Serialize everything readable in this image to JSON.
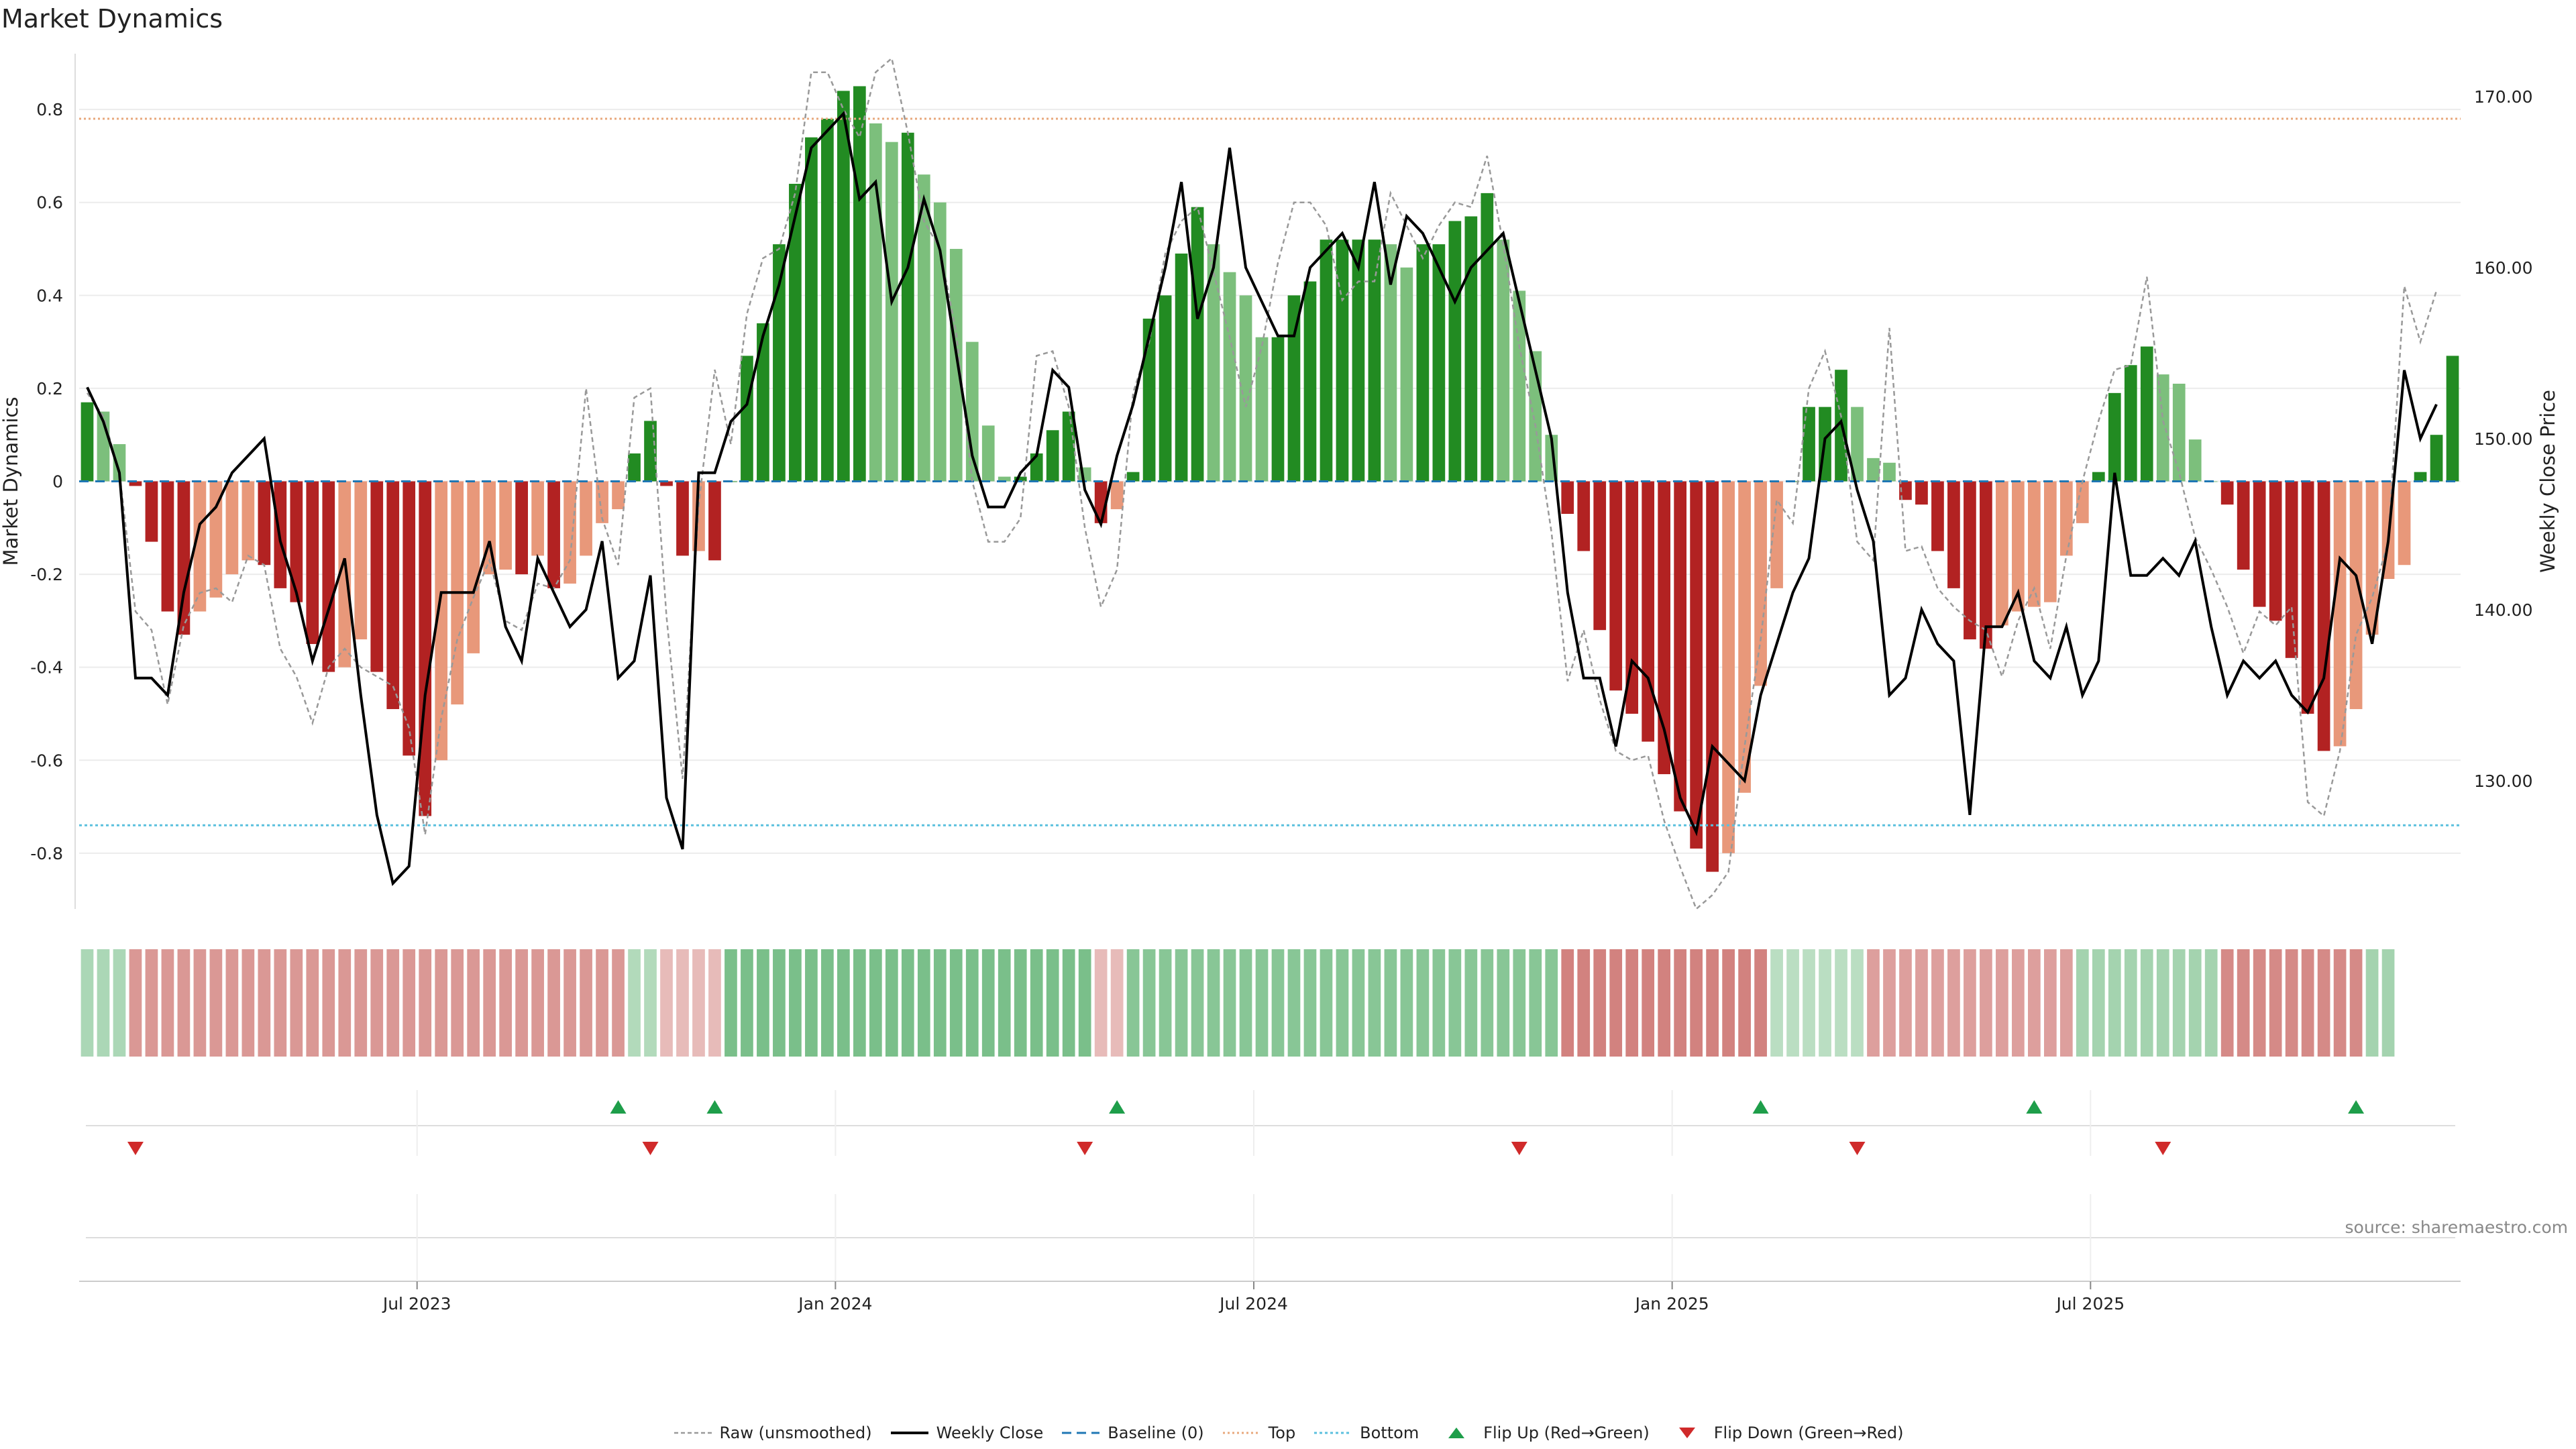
{
  "title": "Market Dynamics",
  "source": "source: sharemaestro.com",
  "colors": {
    "strong_green": "#228b22",
    "light_green": "#7cbf7c",
    "strong_red": "#b22222",
    "light_red": "#e8987a",
    "raw": "#999999",
    "close": "#000000",
    "baseline": "#1f77b4",
    "top": "#e8a87c",
    "bottom": "#5bc0de"
  },
  "legend": [
    {
      "key": "raw",
      "label": "Raw (unsmoothed)"
    },
    {
      "key": "close",
      "label": "Weekly Close"
    },
    {
      "key": "baseline",
      "label": "Baseline (0)"
    },
    {
      "key": "top",
      "label": "Top"
    },
    {
      "key": "bottom",
      "label": "Bottom"
    },
    {
      "key": "flip_up",
      "label": "Flip Up (Red→Green)"
    },
    {
      "key": "flip_down",
      "label": "Flip Down (Green→Red)"
    }
  ],
  "chart_data": {
    "type": "bar",
    "ylabel_left": "Market Dynamics",
    "ylabel_right": "Weekly Close Price",
    "ylim_left": [
      -0.92,
      0.92
    ],
    "ylim_right": [
      122.5,
      172.5
    ],
    "yticks_left": [
      0.8,
      0.6,
      0.4,
      0.2,
      0,
      -0.2,
      -0.4,
      -0.6,
      -0.8
    ],
    "yticks_right": [
      "170.00",
      "160.00",
      "150.00",
      "140.00",
      "130.00"
    ],
    "ytick_right_values": [
      170,
      160,
      150,
      140,
      130
    ],
    "top_level": 0.78,
    "bottom_level": -0.74,
    "xticks": [
      {
        "label": "Jul 2023",
        "index": 20.5
      },
      {
        "label": "Jan 2024",
        "index": 46.5
      },
      {
        "label": "Jul 2024",
        "index": 72.5
      },
      {
        "label": "Jan 2025",
        "index": 98.5
      },
      {
        "label": "Jul 2025",
        "index": 124.5
      }
    ],
    "series": [
      {
        "name": "Market Dynamics",
        "values": [
          0.17,
          0.15,
          0.08,
          -0.01,
          -0.13,
          -0.28,
          -0.33,
          -0.28,
          -0.25,
          -0.2,
          -0.17,
          -0.18,
          -0.23,
          -0.26,
          -0.35,
          -0.41,
          -0.4,
          -0.34,
          -0.41,
          -0.49,
          -0.59,
          -0.72,
          -0.6,
          -0.48,
          -0.37,
          -0.2,
          -0.19,
          -0.2,
          -0.16,
          -0.23,
          -0.22,
          -0.16,
          -0.09,
          -0.06,
          0.06,
          0.13,
          -0.01,
          -0.16,
          -0.15,
          -0.17,
          0.0,
          0.27,
          0.34,
          0.51,
          0.64,
          0.74,
          0.78,
          0.84,
          0.85,
          0.77,
          0.73,
          0.75,
          0.66,
          0.6,
          0.5,
          0.3,
          0.12,
          0.01,
          0.01,
          0.06,
          0.11,
          0.15,
          0.03,
          -0.09,
          -0.06,
          0.02,
          0.35,
          0.4,
          0.49,
          0.59,
          0.51,
          0.45,
          0.4,
          0.31,
          0.31,
          0.4,
          0.43,
          0.52,
          0.52,
          0.52,
          0.52,
          0.51,
          0.46,
          0.51,
          0.51,
          0.56,
          0.57,
          0.62,
          0.52,
          0.41,
          0.28,
          0.1,
          -0.07,
          -0.15,
          -0.32,
          -0.45,
          -0.5,
          -0.56,
          -0.63,
          -0.71,
          -0.79,
          -0.84,
          -0.8,
          -0.67,
          -0.44,
          -0.23,
          0.0,
          0.16,
          0.16,
          0.24,
          0.16,
          0.05,
          0.04,
          -0.04,
          -0.05,
          -0.15,
          -0.23,
          -0.34,
          -0.36,
          -0.31,
          -0.28,
          -0.27,
          -0.26,
          -0.16,
          -0.09,
          0.02,
          0.19,
          0.25,
          0.29,
          0.23,
          0.21,
          0.09,
          0.0,
          -0.05,
          -0.19,
          -0.27,
          -0.3,
          -0.38,
          -0.5,
          -0.58,
          -0.57,
          -0.49,
          -0.33,
          -0.21,
          -0.18,
          0.02,
          0.1,
          0.27
        ]
      },
      {
        "name": "Raw (unsmoothed)",
        "values": [
          0.19,
          0.14,
          0.02,
          -0.28,
          -0.32,
          -0.48,
          -0.31,
          -0.24,
          -0.23,
          -0.26,
          -0.16,
          -0.18,
          -0.36,
          -0.42,
          -0.52,
          -0.4,
          -0.36,
          -0.4,
          -0.42,
          -0.44,
          -0.53,
          -0.76,
          -0.51,
          -0.34,
          -0.25,
          -0.17,
          -0.3,
          -0.32,
          -0.22,
          -0.23,
          -0.17,
          0.2,
          -0.08,
          -0.18,
          0.18,
          0.2,
          -0.29,
          -0.64,
          -0.05,
          0.24,
          0.08,
          0.36,
          0.48,
          0.5,
          0.62,
          0.88,
          0.88,
          0.8,
          0.74,
          0.88,
          0.91,
          0.75,
          0.56,
          0.5,
          0.32,
          0.0,
          -0.13,
          -0.13,
          -0.08,
          0.27,
          0.28,
          0.16,
          -0.1,
          -0.27,
          -0.19,
          0.19,
          0.3,
          0.49,
          0.56,
          0.59,
          0.45,
          0.31,
          0.16,
          0.29,
          0.47,
          0.6,
          0.6,
          0.55,
          0.39,
          0.43,
          0.43,
          0.62,
          0.55,
          0.48,
          0.55,
          0.6,
          0.59,
          0.7,
          0.51,
          0.29,
          0.12,
          -0.11,
          -0.43,
          -0.32,
          -0.47,
          -0.58,
          -0.6,
          -0.59,
          -0.73,
          -0.83,
          -0.92,
          -0.89,
          -0.84,
          -0.57,
          -0.34,
          -0.04,
          -0.09,
          0.2,
          0.28,
          0.14,
          -0.13,
          -0.17,
          0.33,
          -0.15,
          -0.14,
          -0.23,
          -0.27,
          -0.3,
          -0.32,
          -0.42,
          -0.3,
          -0.23,
          -0.36,
          -0.16,
          0.0,
          0.13,
          0.24,
          0.25,
          0.44,
          0.13,
          0.02,
          -0.12,
          -0.19,
          -0.27,
          -0.37,
          -0.28,
          -0.31,
          -0.27,
          -0.69,
          -0.72,
          -0.58,
          -0.33,
          -0.25,
          -0.13,
          0.42,
          0.3,
          0.41
        ]
      },
      {
        "name": "Weekly Close",
        "values": [
          153,
          151,
          148,
          136,
          136,
          135,
          141,
          145,
          146,
          148,
          149,
          150,
          144,
          141,
          137,
          140,
          143,
          135,
          128,
          124,
          125,
          135,
          141,
          141,
          141,
          144,
          139,
          137,
          143,
          141,
          139,
          140,
          144,
          136,
          137,
          142,
          129,
          126,
          148,
          148,
          151,
          152,
          156,
          159,
          163,
          167,
          168,
          169,
          164,
          165,
          158,
          160,
          164,
          161,
          155,
          149,
          146,
          146,
          148,
          149,
          154,
          153,
          147,
          145,
          149,
          152,
          156,
          160,
          165,
          157,
          160,
          167,
          160,
          158,
          156,
          156,
          160,
          161,
          162,
          160,
          165,
          159,
          163,
          162,
          160,
          158,
          160,
          161,
          162,
          158,
          154,
          150,
          141,
          136,
          136,
          132,
          137,
          136,
          133,
          129,
          127,
          132,
          131,
          130,
          135,
          138,
          141,
          143,
          150,
          151,
          147,
          144,
          135,
          136,
          140,
          138,
          137,
          128,
          139,
          139,
          141,
          137,
          136,
          139,
          135,
          137,
          148,
          142,
          142,
          143,
          142,
          144,
          139,
          135,
          137,
          136,
          137,
          135,
          134,
          136,
          143,
          142,
          138,
          144,
          154,
          150,
          152
        ]
      }
    ],
    "regime_strip": [
      {
        "start": 0,
        "end": 2,
        "regime": "green",
        "intensity": 0.35
      },
      {
        "start": 3,
        "end": 33,
        "regime": "red",
        "intensity": 0.5
      },
      {
        "start": 34,
        "end": 35,
        "regime": "green",
        "intensity": 0.3
      },
      {
        "start": 36,
        "end": 39,
        "regime": "red",
        "intensity": 0.25
      },
      {
        "start": 40,
        "end": 62,
        "regime": "green",
        "intensity": 0.7
      },
      {
        "start": 63,
        "end": 64,
        "regime": "red",
        "intensity": 0.25
      },
      {
        "start": 65,
        "end": 91,
        "regime": "green",
        "intensity": 0.6
      },
      {
        "start": 92,
        "end": 104,
        "regime": "red",
        "intensity": 0.65
      },
      {
        "start": 105,
        "end": 110,
        "regime": "green",
        "intensity": 0.25
      },
      {
        "start": 111,
        "end": 123,
        "regime": "red",
        "intensity": 0.45
      },
      {
        "start": 124,
        "end": 132,
        "regime": "green",
        "intensity": 0.4
      },
      {
        "start": 133,
        "end": 141,
        "regime": "red",
        "intensity": 0.6
      },
      {
        "start": 142,
        "end": 143,
        "regime": "green",
        "intensity": 0.4
      }
    ],
    "flip_up_indices": [
      33,
      39,
      64,
      104,
      121,
      141
    ],
    "flip_down_indices": [
      3,
      35,
      62,
      89,
      110,
      129
    ]
  }
}
